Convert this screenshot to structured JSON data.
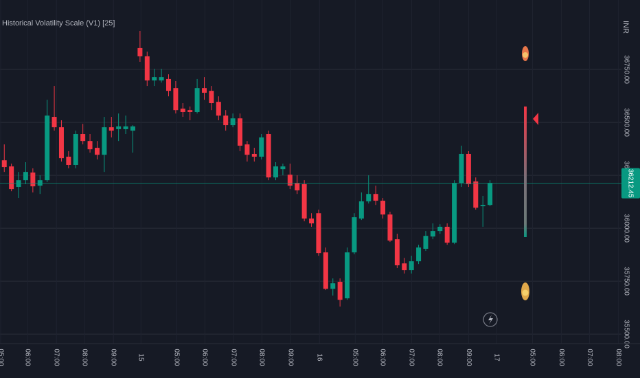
{
  "chart_data": {
    "type": "candlestick",
    "title": "Historical Volatility Scale (V1) [25]",
    "y_unit": "INR",
    "up_color": "#089981",
    "down_color": "#f23645",
    "grid": true,
    "xlim": [
      -0.6,
      86.4
    ],
    "ylim": [
      35455,
      37078
    ],
    "yticks": [
      {
        "value": 36750,
        "label": "36750.00"
      },
      {
        "value": 36500,
        "label": "36500.00"
      },
      {
        "value": 36250,
        "label": "36250.00"
      },
      {
        "value": 36000,
        "label": "36000.00"
      },
      {
        "value": 35750,
        "label": "35750.00"
      },
      {
        "value": 35500,
        "label": "35500.00"
      }
    ],
    "last_price": 36212.45,
    "xticks": [
      {
        "value": -0.5,
        "label": "05:00"
      },
      {
        "value": 3.27,
        "label": "06:00"
      },
      {
        "value": 7.31,
        "label": "07:00"
      },
      {
        "value": 11.25,
        "label": "08:00"
      },
      {
        "value": 15.29,
        "label": "09:00"
      },
      {
        "value": 19.13,
        "label": "15"
      },
      {
        "value": 24.13,
        "label": "05:00"
      },
      {
        "value": 28.08,
        "label": "06:00"
      },
      {
        "value": 32.12,
        "label": "07:00"
      },
      {
        "value": 36.06,
        "label": "08:00"
      },
      {
        "value": 40.1,
        "label": "09:00"
      },
      {
        "value": 44.13,
        "label": "16"
      },
      {
        "value": 49.13,
        "label": "05:00"
      },
      {
        "value": 52.98,
        "label": "06:00"
      },
      {
        "value": 57.02,
        "label": "07:00"
      },
      {
        "value": 60.96,
        "label": "08:00"
      },
      {
        "value": 65,
        "label": "09:00"
      },
      {
        "value": 68.94,
        "label": "17"
      },
      {
        "value": 73.94,
        "label": "05:00"
      },
      {
        "value": 77.98,
        "label": "06:00"
      },
      {
        "value": 81.92,
        "label": "07:00"
      },
      {
        "value": 85.96,
        "label": "08:00"
      }
    ],
    "open": [
      36321,
      36292,
      36195,
      36227,
      36263,
      36201,
      36227,
      36526,
      36477,
      36338,
      36299,
      36445,
      36412,
      36380,
      36347,
      36477,
      36468,
      36468,
      36461,
      36851,
      36812,
      36698,
      36698,
      36705,
      36662,
      36565,
      36558,
      36549,
      36662,
      36649,
      36597,
      36532,
      36487,
      36519,
      36396,
      36351,
      36338,
      36445,
      36240,
      36279,
      36253,
      36214,
      36208,
      36046,
      36071,
      35886,
      35714,
      35747,
      35669,
      35886,
      36046,
      36127,
      36162,
      36130,
      36065,
      35948,
      35834,
      35802,
      35844,
      35903,
      35961,
      35987,
      36007,
      35932,
      36214,
      36351,
      36221,
      36104,
      36110
    ],
    "high": [
      36396,
      36305,
      36266,
      36312,
      36283,
      36250,
      36607,
      36672,
      36510,
      36364,
      36461,
      36493,
      36445,
      36412,
      36526,
      36526,
      36542,
      36532,
      36487,
      36932,
      36834,
      36753,
      36753,
      36727,
      36695,
      36591,
      36575,
      36705,
      36714,
      36672,
      36623,
      36558,
      36542,
      36542,
      36412,
      36380,
      36445,
      36461,
      36312,
      36305,
      36305,
      36250,
      36227,
      36071,
      36088,
      35909,
      35763,
      35763,
      35909,
      36071,
      36169,
      36250,
      36201,
      36143,
      36078,
      35974,
      35860,
      35870,
      35922,
      35987,
      36023,
      36019,
      36023,
      36227,
      36390,
      36364,
      36240,
      36153,
      36227
    ],
    "low": [
      36266,
      36175,
      36143,
      36208,
      36169,
      36162,
      36218,
      36461,
      36315,
      36283,
      36283,
      36396,
      36357,
      36325,
      36266,
      36429,
      36412,
      36445,
      36357,
      36786,
      36672,
      36672,
      36688,
      36623,
      36542,
      36526,
      36510,
      36542,
      36607,
      36558,
      36510,
      36461,
      36477,
      36364,
      36315,
      36315,
      36325,
      36227,
      36227,
      36250,
      36185,
      36162,
      36033,
      36007,
      35870,
      35708,
      35682,
      35630,
      35662,
      35877,
      36039,
      36117,
      36110,
      36046,
      35935,
      35812,
      35786,
      35786,
      35831,
      35893,
      35948,
      35974,
      35922,
      35925,
      36195,
      36195,
      36088,
      36007,
      36104
    ],
    "close": [
      36289,
      36185,
      36227,
      36266,
      36198,
      36227,
      36532,
      36477,
      36331,
      36299,
      36445,
      36412,
      36373,
      36347,
      36477,
      36461,
      36481,
      36481,
      36481,
      36812,
      36698,
      36714,
      36714,
      36649,
      36558,
      36549,
      36549,
      36662,
      36640,
      36591,
      36532,
      36487,
      36519,
      36390,
      36347,
      36338,
      36429,
      36240,
      36292,
      36292,
      36201,
      36179,
      36046,
      36023,
      35883,
      35714,
      35740,
      35662,
      35886,
      36052,
      36127,
      36162,
      36130,
      36065,
      35942,
      35825,
      35802,
      35844,
      35909,
      35964,
      35987,
      36007,
      35932,
      36214,
      36351,
      36208,
      36097,
      36110,
      36214
    ]
  }
}
